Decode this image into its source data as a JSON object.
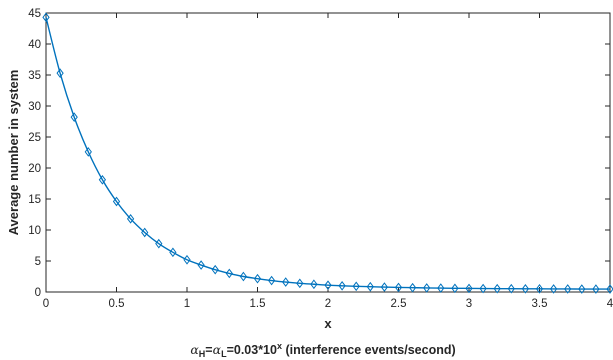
{
  "chart_data": {
    "type": "line",
    "title": "",
    "xlabel": "x",
    "ylabel": "Average number in system",
    "caption": {
      "alpha_h": "α",
      "h_sub": "H",
      "equals": "=",
      "alpha_l": "α",
      "l_sub": "L",
      "rhs": "=0.03*10",
      "exp": "x",
      "suffix": " (interference events/second)"
    },
    "xlim": [
      0,
      4
    ],
    "ylim": [
      0,
      45
    ],
    "xticks": [
      0,
      0.5,
      1,
      1.5,
      2,
      2.5,
      3,
      3.5,
      4
    ],
    "xtick_labels": [
      "0",
      "0.5",
      "1",
      "1.5",
      "2",
      "2.5",
      "3",
      "3.5",
      "4"
    ],
    "yticks": [
      0,
      5,
      10,
      15,
      20,
      25,
      30,
      35,
      40,
      45
    ],
    "ytick_labels": [
      "0",
      "5",
      "10",
      "15",
      "20",
      "25",
      "30",
      "35",
      "40",
      "45"
    ],
    "grid": false,
    "marker": "diamond",
    "color": "#0072BD",
    "series": [
      {
        "x": [
          0,
          0.1,
          0.2,
          0.3,
          0.4,
          0.5,
          0.6,
          0.7,
          0.8,
          0.9,
          1.0,
          1.1,
          1.2,
          1.3,
          1.4,
          1.5,
          1.6,
          1.7,
          1.8,
          1.9,
          2.0,
          2.1,
          2.2,
          2.3,
          2.4,
          2.5,
          2.6,
          2.7,
          2.8,
          2.9,
          3.0,
          3.1,
          3.2,
          3.3,
          3.4,
          3.5,
          3.6,
          3.7,
          3.8,
          3.9,
          4.0
        ],
        "y": [
          44.3,
          35.3,
          28.2,
          22.6,
          18.1,
          14.6,
          11.8,
          9.6,
          7.8,
          6.4,
          5.2,
          4.35,
          3.6,
          3.0,
          2.5,
          2.15,
          1.85,
          1.6,
          1.4,
          1.25,
          1.1,
          1.0,
          0.92,
          0.85,
          0.79,
          0.74,
          0.7,
          0.66,
          0.63,
          0.6,
          0.58,
          0.56,
          0.54,
          0.53,
          0.52,
          0.51,
          0.5,
          0.49,
          0.48,
          0.47,
          0.47
        ]
      }
    ]
  }
}
